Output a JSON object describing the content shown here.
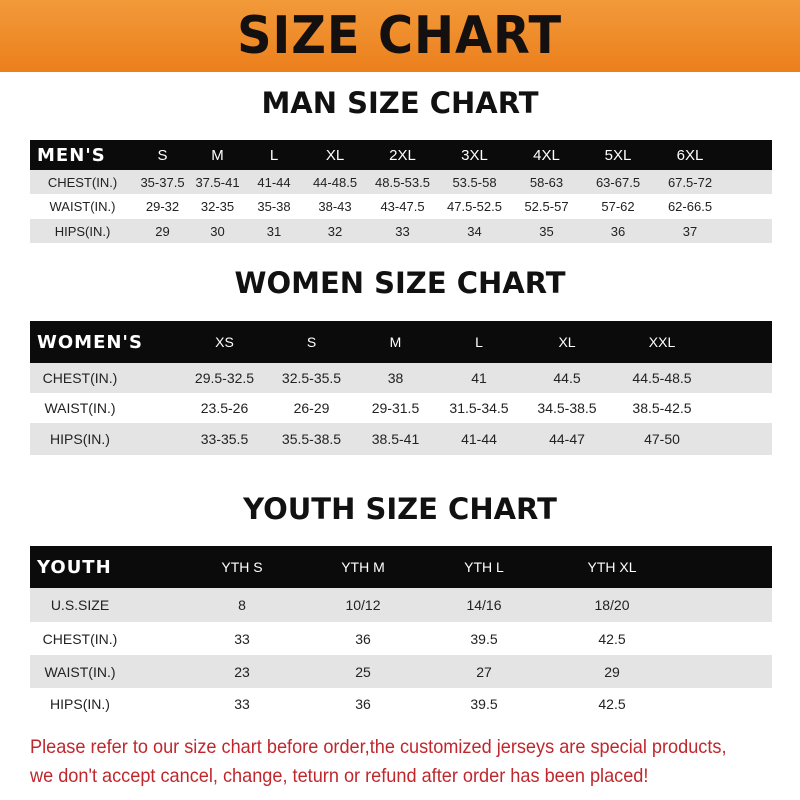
{
  "banner": {
    "title": "SIZE CHART",
    "color": "#ee8a2a"
  },
  "men": {
    "title": "MAN SIZE CHART",
    "header": [
      "MEN'S",
      "S",
      "M",
      "L",
      "XL",
      "2XL",
      "3XL",
      "4XL",
      "5XL",
      "6XL"
    ],
    "rows": [
      [
        "CHEST(IN.)",
        "35-37.5",
        "37.5-41",
        "41-44",
        "44-48.5",
        "48.5-53.5",
        "53.5-58",
        "58-63",
        "63-67.5",
        "67.5-72"
      ],
      [
        "WAIST(IN.)",
        "29-32",
        "32-35",
        "35-38",
        "38-43",
        "43-47.5",
        "47.5-52.5",
        "52.5-57",
        "57-62",
        "62-66.5"
      ],
      [
        "HIPS(IN.)",
        "29",
        "30",
        "31",
        "32",
        "33",
        "34",
        "35",
        "36",
        "37"
      ]
    ]
  },
  "women": {
    "title": "WOMEN SIZE CHART",
    "header": [
      "WOMEN'S",
      "XS",
      "S",
      "M",
      "L",
      "XL",
      "XXL"
    ],
    "rows": [
      [
        "CHEST(IN.)",
        "29.5-32.5",
        "32.5-35.5",
        "38",
        "41",
        "44.5",
        "44.5-48.5"
      ],
      [
        "WAIST(IN.)",
        "23.5-26",
        "26-29",
        "29-31.5",
        "31.5-34.5",
        "34.5-38.5",
        "38.5-42.5"
      ],
      [
        "HIPS(IN.)",
        "33-35.5",
        "35.5-38.5",
        "38.5-41",
        "41-44",
        "44-47",
        "47-50"
      ]
    ]
  },
  "youth": {
    "title": "YOUTH SIZE CHART",
    "header": [
      "YOUTH",
      "YTH S",
      "YTH M",
      "YTH L",
      "YTH XL"
    ],
    "rows": [
      [
        "U.S.SIZE",
        "8",
        "10/12",
        "14/16",
        "18/20"
      ],
      [
        "CHEST(IN.)",
        "33",
        "36",
        "39.5",
        "42.5"
      ],
      [
        "WAIST(IN.)",
        "23",
        "25",
        "27",
        "29"
      ],
      [
        "HIPS(IN.)",
        "33",
        "36",
        "39.5",
        "42.5"
      ]
    ]
  },
  "notice": {
    "line1": "Please refer to our size chart before order,the customized jerseys are special products,",
    "line2": "we don't accept cancel, change, teturn or refund after order has been placed!",
    "color": "#c0272d"
  }
}
